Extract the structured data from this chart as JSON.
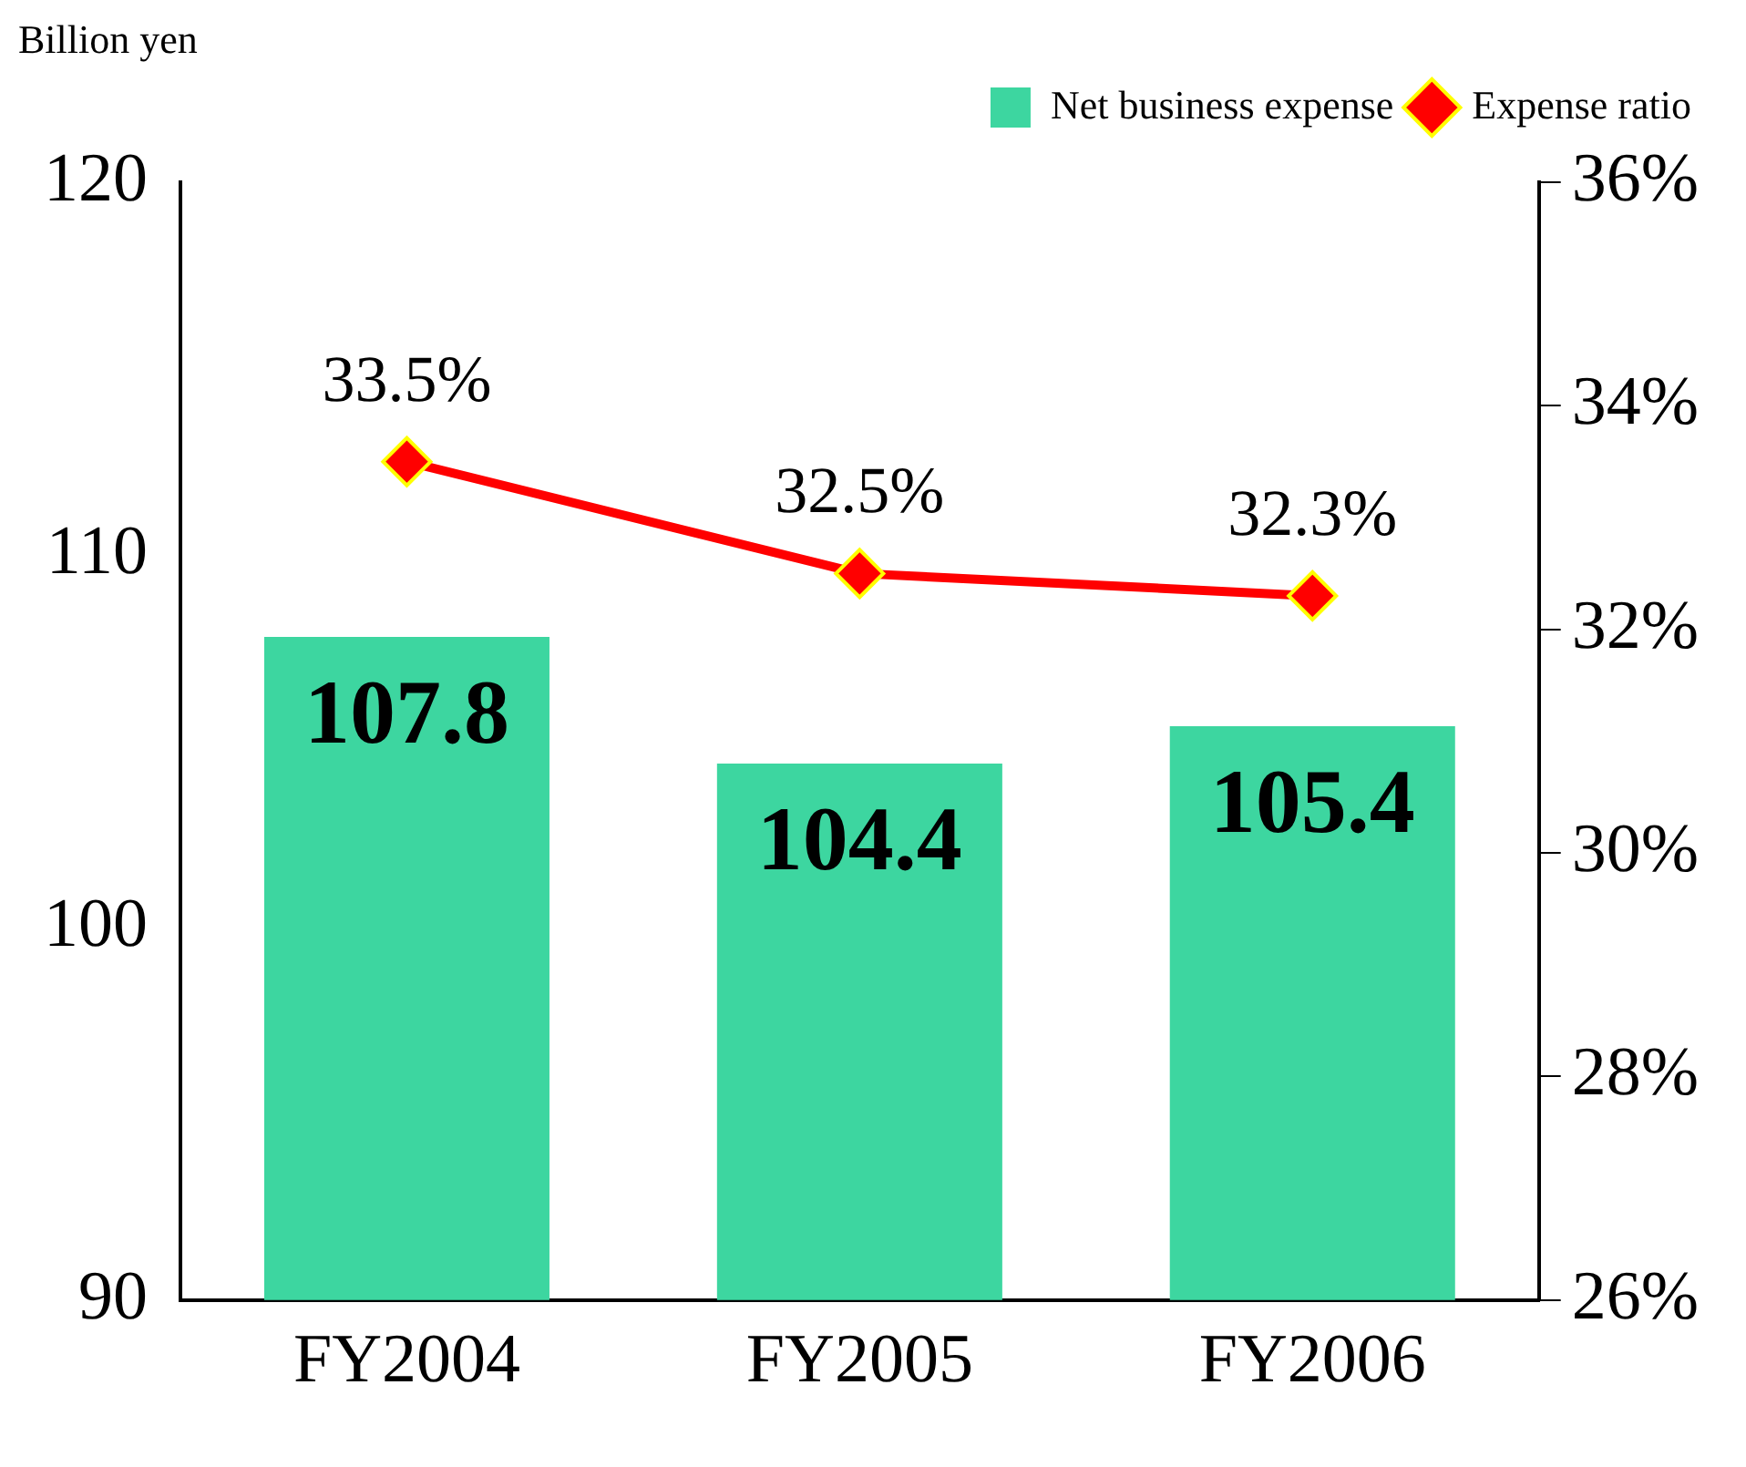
{
  "chart_data": {
    "type": "bar",
    "ylabel": "Billion yen",
    "categories": [
      "FY2004",
      "FY2005",
      "FY2006"
    ],
    "series": [
      {
        "name": "Net business expense",
        "color": "#3dd6a0",
        "values": [
          107.8,
          104.4,
          105.4
        ],
        "value_labels": [
          "107.8",
          "104.4",
          "105.4"
        ]
      },
      {
        "name": "Expense ratio",
        "type": "line",
        "axis": "y2",
        "color": "#ff0000",
        "values": [
          33.5,
          32.5,
          32.3
        ],
        "value_labels": [
          "33.5%",
          "32.5%",
          "32.3%"
        ],
        "marker": "diamond"
      }
    ],
    "ylim": [
      90,
      120
    ],
    "yticks": [
      90,
      100,
      110,
      120
    ],
    "y2lim": [
      26,
      36
    ],
    "y2ticks": [
      {
        "value": 26,
        "label": "26%"
      },
      {
        "value": 28,
        "label": "28%"
      },
      {
        "value": 30,
        "label": "30%"
      },
      {
        "value": 32,
        "label": "32%"
      },
      {
        "value": 34,
        "label": "34%"
      },
      {
        "value": 36,
        "label": "36%"
      }
    ],
    "grid": false,
    "legend": "top right"
  }
}
